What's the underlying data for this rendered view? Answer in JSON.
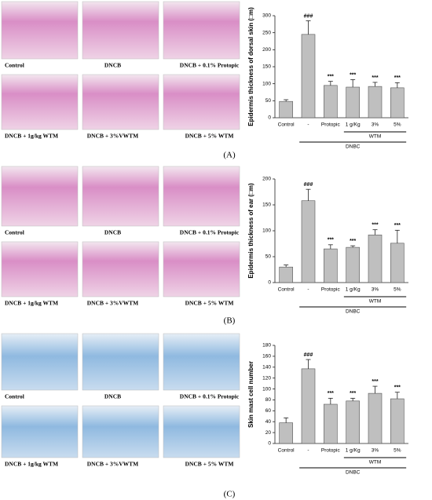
{
  "panels": [
    {
      "label": "(A)",
      "captions": [
        "Control",
        "DNCB",
        "DNCB + 0.1% Protopic",
        "DNCB + 1g/kg WTM",
        "DNCB + 3%VWTM",
        "DNCB + 5% WTM"
      ]
    },
    {
      "label": "(B)",
      "captions": [
        "Control",
        "DNCB",
        "DNCB + 0.1% Protopic",
        "DNCB + 1g/kg WTM",
        "DNCB + 3%VWTM",
        "DNCB + 5% WTM"
      ]
    },
    {
      "label": "(C)",
      "captions": [
        "Control",
        "DNCB",
        "DNCB + 0.1% Protopic",
        "DNCB + 1g/kg WTM",
        "DNCB + 3%VWTM",
        "DNCB + 5% WTM"
      ]
    }
  ],
  "chart_data": [
    {
      "type": "bar",
      "y_label": "Epidermis thickness of dorsal skin (□m)",
      "categories": [
        "Control",
        "-",
        "Protopic",
        "1 g/Kg",
        "3%",
        "5%"
      ],
      "values": [
        48,
        245,
        95,
        90,
        92,
        88
      ],
      "errors": [
        5,
        40,
        12,
        22,
        12,
        15
      ],
      "significance": [
        "",
        "###",
        "***",
        "***",
        "***",
        "***"
      ],
      "groups": [
        {
          "name": "WTM",
          "from": 3,
          "to": 5
        },
        {
          "name": "DNBC",
          "from": 1,
          "to": 5
        }
      ],
      "color": "#bfbfbf",
      "ylim": [
        0,
        300
      ],
      "yticks": [
        0,
        50,
        100,
        150,
        200,
        250,
        300
      ]
    },
    {
      "type": "bar",
      "y_label": "Epidermis thickness of ear (□m)",
      "categories": [
        "Control",
        "-",
        "Protopic",
        "1 g/Kg",
        "3%",
        "5%"
      ],
      "values": [
        30,
        158,
        65,
        68,
        92,
        76
      ],
      "errors": [
        4,
        22,
        8,
        3,
        10,
        25
      ],
      "significance": [
        "",
        "###",
        "***",
        "***",
        "***",
        "***"
      ],
      "groups": [
        {
          "name": "WTM",
          "from": 3,
          "to": 5
        },
        {
          "name": "DNBC",
          "from": 1,
          "to": 5
        }
      ],
      "color": "#bfbfbf",
      "ylim": [
        0,
        200
      ],
      "yticks": [
        0,
        50,
        100,
        150,
        200
      ]
    },
    {
      "type": "bar",
      "y_label": "Skin mast cell number",
      "categories": [
        "Control",
        "-",
        "Protopic",
        "1 g/Kg",
        "3%",
        "5%"
      ],
      "values": [
        38,
        137,
        72,
        78,
        92,
        82
      ],
      "errors": [
        9,
        17,
        11,
        5,
        13,
        12
      ],
      "significance": [
        "",
        "###",
        "***",
        "***",
        "***",
        "***"
      ],
      "groups": [
        {
          "name": "WTM",
          "from": 3,
          "to": 5
        },
        {
          "name": "DNBC",
          "from": 1,
          "to": 5
        }
      ],
      "color": "#bfbfbf",
      "ylim": [
        0,
        180
      ],
      "yticks": [
        0,
        20,
        40,
        60,
        80,
        100,
        120,
        140,
        160,
        180
      ]
    }
  ]
}
